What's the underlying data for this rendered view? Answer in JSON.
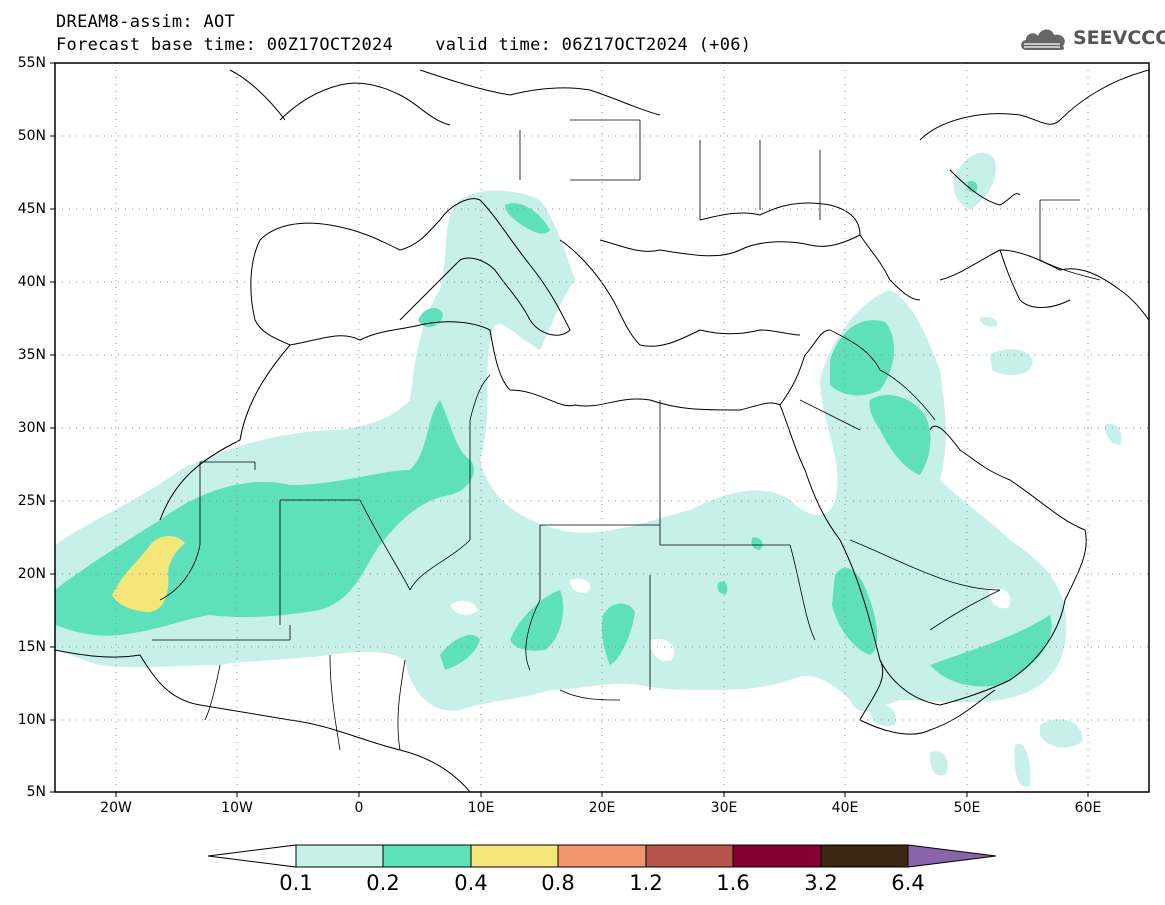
{
  "title": {
    "line1": "DREAM8-assim: AOT",
    "line2": "Forecast base time: 00Z17OCT2024    valid time: 06Z17OCT2024 (+06)"
  },
  "logo": {
    "icon": "cloud-icon",
    "text": "SEEVCCC"
  },
  "map": {
    "projection": "equirectangular",
    "lon_range": [
      -25,
      65
    ],
    "lat_range": [
      5,
      55
    ],
    "grid": "dotted",
    "lat_ticks": [
      "55N",
      "50N",
      "45N",
      "40N",
      "35N",
      "30N",
      "25N",
      "20N",
      "15N",
      "10N",
      "5N"
    ],
    "lon_ticks": [
      "20W",
      "10W",
      "0",
      "10E",
      "20E",
      "30E",
      "40E",
      "50E",
      "60E"
    ]
  },
  "colorbar": {
    "levels": [
      "0.1",
      "0.2",
      "0.4",
      "0.8",
      "1.2",
      "1.6",
      "3.2",
      "6.4"
    ],
    "colors": [
      "#c8f0ea",
      "#5ee0bc",
      "#f5e67a",
      "#f0966e",
      "#b5544a",
      "#840034",
      "#3c2812",
      "#8a64aa"
    ],
    "extend": "both"
  }
}
